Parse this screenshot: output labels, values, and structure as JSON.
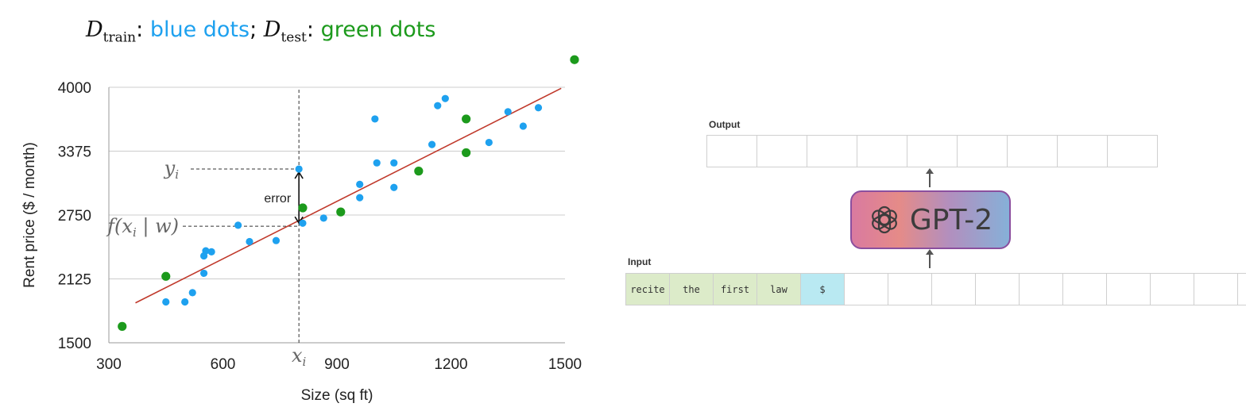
{
  "header": {
    "train_sub": "train",
    "test_sub": "test",
    "train_desc": "blue dots",
    "test_desc": "green dots"
  },
  "chart_data": {
    "type": "scatter",
    "xlabel": "Size (sq ft)",
    "ylabel": "Rent price ($ / month)",
    "xlim": [
      300,
      1500
    ],
    "ylim": [
      1500,
      4000
    ],
    "x_ticks": [
      "300",
      "600",
      "900",
      "1200",
      "1500"
    ],
    "y_ticks": [
      "1500",
      "2125",
      "2750",
      "3375",
      "4000"
    ],
    "grid": "horizontal",
    "series": [
      {
        "color": "#1ea1ef",
        "points": [
          [
            450,
            1900
          ],
          [
            500,
            1900
          ],
          [
            520,
            1990
          ],
          [
            550,
            2180
          ],
          [
            550,
            2350
          ],
          [
            555,
            2400
          ],
          [
            570,
            2390
          ],
          [
            640,
            2650
          ],
          [
            670,
            2490
          ],
          [
            740,
            2500
          ],
          [
            800,
            3200
          ],
          [
            810,
            2670
          ],
          [
            865,
            2720
          ],
          [
            960,
            2920
          ],
          [
            960,
            3050
          ],
          [
            1000,
            3690
          ],
          [
            1005,
            3260
          ],
          [
            1050,
            3260
          ],
          [
            1050,
            3020
          ],
          [
            1150,
            3440
          ],
          [
            1165,
            3820
          ],
          [
            1185,
            3890
          ],
          [
            1300,
            3460
          ],
          [
            1350,
            3760
          ],
          [
            1390,
            3620
          ],
          [
            1430,
            3800
          ]
        ]
      },
      {
        "color": "#1c9a1c",
        "points": [
          [
            335,
            1660
          ],
          [
            450,
            2150
          ],
          [
            810,
            2820
          ],
          [
            910,
            2780
          ],
          [
            1115,
            3180
          ],
          [
            1240,
            3690
          ],
          [
            1240,
            3360
          ],
          [
            1525,
            4270
          ]
        ]
      }
    ],
    "fit_line": {
      "color": "#c0392b",
      "from": [
        370,
        1890
      ],
      "to": [
        1490,
        3990
      ]
    },
    "annotations": {
      "yi_label": "y",
      "yi_sub": "i",
      "fx_label_pre": "f(x",
      "fx_sub": "i",
      "fx_label_post": " | w)",
      "xi_label": "x",
      "xi_sub": "i",
      "error_label": "error",
      "xi_value": 800,
      "yi_value": 3200,
      "fx_value": 2640
    }
  },
  "gpt": {
    "output_label": "Output",
    "input_label": "Input",
    "model_name": "GPT-2",
    "logo_icon": "openai-logo-icon",
    "input_tokens": [
      "recite",
      "the",
      "first",
      "law",
      "$",
      "",
      "",
      "",
      "",
      "",
      "",
      "",
      "",
      "",
      ""
    ],
    "output_slot_count": 9
  }
}
